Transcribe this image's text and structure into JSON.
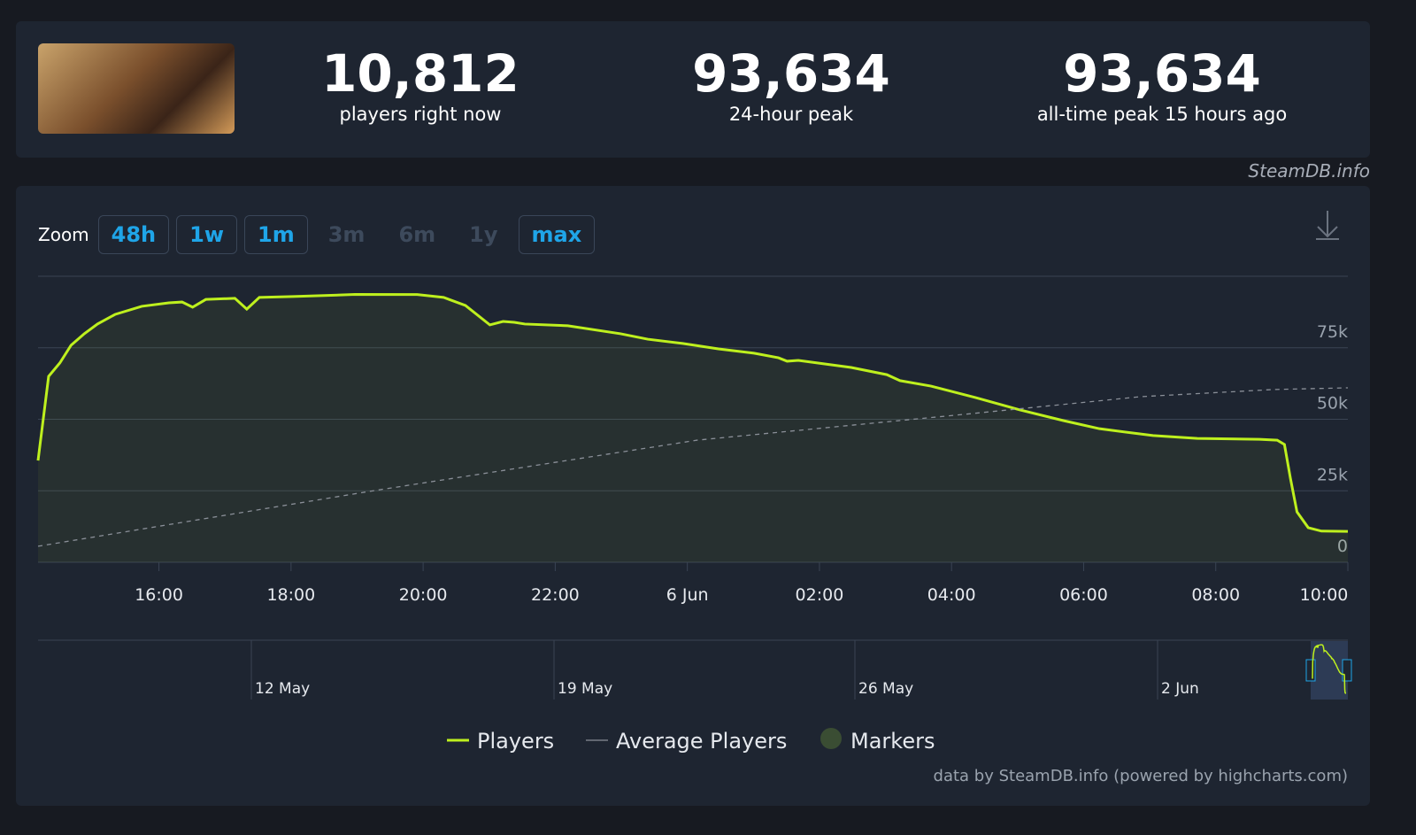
{
  "stats": [
    {
      "value": "10,812",
      "label": "players right now"
    },
    {
      "value": "93,634",
      "label": "24-hour peak"
    },
    {
      "value": "93,634",
      "label": "all-time peak 15 hours ago"
    }
  ],
  "credit": "SteamDB.info",
  "zoom": {
    "label": "Zoom",
    "buttons": [
      {
        "label": "48h",
        "enabled": true
      },
      {
        "label": "1w",
        "enabled": true
      },
      {
        "label": "1m",
        "enabled": true
      },
      {
        "label": "3m",
        "enabled": false
      },
      {
        "label": "6m",
        "enabled": false
      },
      {
        "label": "1y",
        "enabled": false
      },
      {
        "label": "max",
        "enabled": true
      }
    ]
  },
  "chart_data": {
    "type": "line",
    "x": [
      14.17,
      14.33,
      14.5,
      14.67,
      14.87,
      15.07,
      15.34,
      15.74,
      16.15,
      16.35,
      16.51,
      16.71,
      17.15,
      17.33,
      17.52,
      18.03,
      18.97,
      19.91,
      20.31,
      20.64,
      21.01,
      21.21,
      21.38,
      21.54,
      22.19,
      22.99,
      23.4,
      23.93,
      24.47,
      25.01,
      25.38,
      25.51,
      25.68,
      26.48,
      27.02,
      27.22,
      27.69,
      28.36,
      29.03,
      29.7,
      30.24,
      31.05,
      31.72,
      32.66,
      32.93,
      33.04,
      33.13,
      33.23,
      33.4,
      33.6,
      34
    ],
    "series": [
      {
        "name": "Players",
        "color": "#bef01e",
        "values": [
          35600,
          65000,
          69700,
          75900,
          79900,
          83300,
          86700,
          89500,
          90700,
          91000,
          89200,
          91900,
          92300,
          88500,
          92600,
          92900,
          93634,
          93600,
          92600,
          89800,
          83000,
          84200,
          83900,
          83300,
          82700,
          79900,
          78000,
          76500,
          74600,
          73100,
          71500,
          70300,
          70600,
          68100,
          65600,
          63500,
          61600,
          57600,
          53300,
          49500,
          46700,
          44300,
          43300,
          43000,
          42700,
          41200,
          29400,
          17600,
          12100,
          10900,
          10812
        ]
      },
      {
        "name": "Average Players",
        "color": "#8a8f98",
        "dashed": true,
        "x": [
          14.17,
          19.19,
          24.15,
          28.18,
          30.86,
          32.87,
          34
        ],
        "values": [
          5600,
          24800,
          42700,
          51700,
          57900,
          60400,
          61000
        ]
      }
    ],
    "markers": {
      "name": "Markers",
      "color": "#3a4d33"
    },
    "xlim": [
      14.17,
      34
    ],
    "xticks": [
      {
        "value": 16,
        "label": "16:00"
      },
      {
        "value": 18,
        "label": "18:00"
      },
      {
        "value": 20,
        "label": "20:00"
      },
      {
        "value": 22,
        "label": "22:00"
      },
      {
        "value": 24,
        "label": "6 Jun"
      },
      {
        "value": 26,
        "label": "02:00"
      },
      {
        "value": 28,
        "label": "04:00"
      },
      {
        "value": 30,
        "label": "06:00"
      },
      {
        "value": 32,
        "label": "08:00"
      },
      {
        "value": 34,
        "label": "10:00"
      }
    ],
    "ylim": [
      0,
      100000
    ],
    "yticks": [
      0,
      {
        "value": 25000,
        "label": "25k"
      },
      {
        "value": 50000,
        "label": "50k"
      },
      {
        "value": 75000,
        "label": "75k"
      }
    ],
    "grid": true
  },
  "navigator": {
    "labels": [
      "12 May",
      "19 May",
      "26 May",
      "2 Jun"
    ]
  },
  "footer": "data by SteamDB.info (powered by highcharts.com)"
}
